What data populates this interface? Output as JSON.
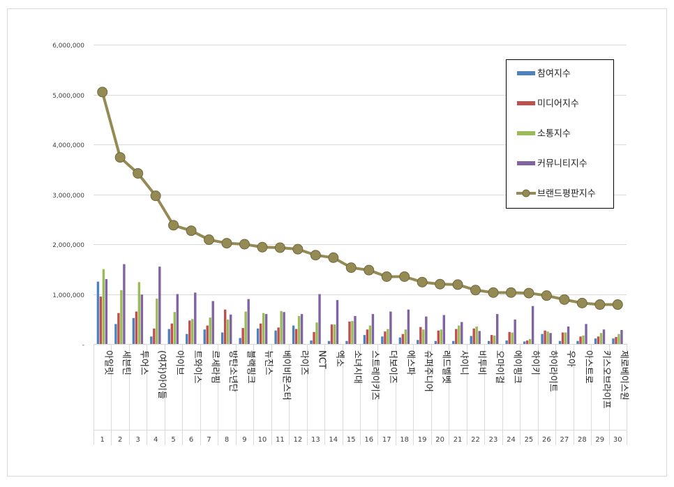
{
  "chart_data": {
    "type": "bar",
    "combo": "clustered bar + line",
    "categories": [
      "아일릿",
      "세븐틴",
      "투어스",
      "(여자)아이들",
      "아이브",
      "트와이스",
      "르세라핌",
      "방탄소년단",
      "블랙핑크",
      "뉴진스",
      "베이비몬스터",
      "라이즈",
      "NCT",
      "엑소",
      "소녀시대",
      "스트레이키즈",
      "더보이즈",
      "에스파",
      "슈퍼주니어",
      "레드벨벳",
      "샤이니",
      "비투비",
      "오마이걸",
      "에이핑크",
      "하이키",
      "하이라이트",
      "우아",
      "아스트로",
      "키스오브라이프",
      "제로베이스원"
    ],
    "ranks": [
      "1",
      "2",
      "3",
      "4",
      "5",
      "6",
      "7",
      "8",
      "9",
      "10",
      "11",
      "12",
      "13",
      "14",
      "15",
      "16",
      "17",
      "18",
      "19",
      "20",
      "21",
      "22",
      "23",
      "24",
      "25",
      "26",
      "27",
      "28",
      "29",
      "30"
    ],
    "ylim": [
      0,
      6000000
    ],
    "y_ticks": [
      "-",
      "1,000,000",
      "2,000,000",
      "3,000,000",
      "4,000,000",
      "5,000,000",
      "6,000,000"
    ],
    "grid": true,
    "legend_position": "top-right",
    "series": [
      {
        "name": "참여지수",
        "kind": "bar",
        "color": "#4f81bd",
        "values": [
          1250000,
          400000,
          520000,
          150000,
          300000,
          200000,
          290000,
          230000,
          120000,
          310000,
          270000,
          370000,
          70000,
          60000,
          60000,
          180000,
          150000,
          130000,
          80000,
          60000,
          60000,
          160000,
          60000,
          70000,
          50000,
          200000,
          60000,
          60000,
          110000,
          110000
        ]
      },
      {
        "name": "미디어지수",
        "kind": "bar",
        "color": "#c0504d",
        "values": [
          950000,
          620000,
          650000,
          310000,
          410000,
          470000,
          370000,
          690000,
          320000,
          410000,
          330000,
          300000,
          240000,
          390000,
          450000,
          290000,
          250000,
          200000,
          340000,
          270000,
          300000,
          310000,
          180000,
          240000,
          70000,
          270000,
          230000,
          150000,
          150000,
          140000
        ]
      },
      {
        "name": "소통지수",
        "kind": "bar",
        "color": "#9bbb59",
        "values": [
          1500000,
          1080000,
          1240000,
          910000,
          640000,
          500000,
          530000,
          490000,
          650000,
          620000,
          660000,
          560000,
          430000,
          390000,
          460000,
          370000,
          300000,
          290000,
          290000,
          290000,
          370000,
          350000,
          170000,
          230000,
          100000,
          250000,
          230000,
          170000,
          220000,
          200000
        ]
      },
      {
        "name": "커뮤니티지수",
        "kind": "bar",
        "color": "#8064a2",
        "values": [
          1300000,
          1600000,
          990000,
          1550000,
          1000000,
          1030000,
          860000,
          590000,
          900000,
          600000,
          640000,
          600000,
          1000000,
          880000,
          560000,
          600000,
          650000,
          690000,
          550000,
          580000,
          440000,
          260000,
          600000,
          490000,
          760000,
          220000,
          350000,
          400000,
          290000,
          280000
        ]
      },
      {
        "name": "브랜드평판지수",
        "kind": "line",
        "color": "#948a54",
        "values": [
          5050000,
          3740000,
          3420000,
          2970000,
          2380000,
          2270000,
          2090000,
          2020000,
          2000000,
          1940000,
          1930000,
          1900000,
          1780000,
          1730000,
          1530000,
          1480000,
          1350000,
          1350000,
          1240000,
          1200000,
          1190000,
          1080000,
          1030000,
          1030000,
          1020000,
          970000,
          890000,
          820000,
          790000,
          790000
        ]
      }
    ]
  }
}
